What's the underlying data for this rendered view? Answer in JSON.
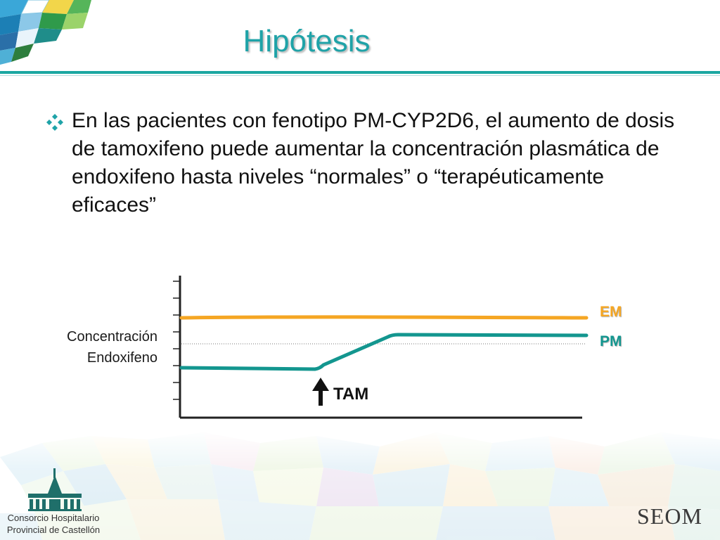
{
  "slide": {
    "title": "Hipótesis",
    "bullet": "En las pacientes con fenotipo PM-CYP2D6, el aumento de dosis de tamoxifeno puede aumentar la concentración plasmática de endoxifeno hasta niveles “normales” o “terapéuticamente eficaces”"
  },
  "diagram": {
    "y_label_line1": "Concentración",
    "y_label_line2": "Endoxifeno",
    "lines": [
      {
        "label": "EM",
        "color": "#f5a623"
      },
      {
        "label": "PM",
        "color": "#13968f"
      }
    ],
    "marker_label": "TAM"
  },
  "footer": {
    "institution_line1": "Consorcio Hospitalario",
    "institution_line2": "Provincial de Castellón",
    "seom_logo": "SEOM"
  },
  "colors": {
    "accent": "#1fa3a8",
    "em_line": "#f5a623",
    "pm_line": "#13968f"
  }
}
